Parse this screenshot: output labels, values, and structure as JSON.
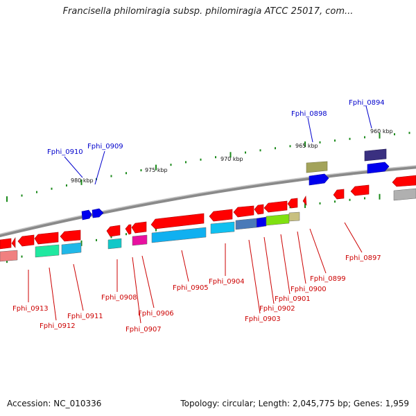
{
  "title": "Francisella philomiragia subsp. philomiragia ATCC 25017, com...",
  "footer": {
    "accession": "Accession: NC_010336",
    "summary": "Topology: circular; Length: 2,045,775 bp; Genes: 1,959"
  },
  "colors": {
    "backbone": "#8a8a8a",
    "tick": "#1a8a1a",
    "forward_label": "#0000cc",
    "reverse_label": "#cc0000"
  },
  "scale": [
    {
      "label": "980 kbp"
    },
    {
      "label": "975 kbp"
    },
    {
      "label": "970 kbp"
    },
    {
      "label": "965 kbp"
    },
    {
      "label": "960 kbp"
    }
  ],
  "forward_genes": [
    {
      "label": "Fphi_0910",
      "color": "#0000ee"
    },
    {
      "label": "Fphi_0909",
      "color": "#0000ee"
    },
    {
      "label": "Fphi_0898",
      "color": "#0000ee"
    },
    {
      "label": "Fphi_0894",
      "color": "#0000ee"
    }
  ],
  "reverse_genes": [
    {
      "label": "Fphi_0913",
      "color": "#ff0000"
    },
    {
      "label": "Fphi_0912",
      "color": "#ff0000"
    },
    {
      "label": "Fphi_0911",
      "color": "#ff0000"
    },
    {
      "label": "Fphi_0908",
      "color": "#ff0000"
    },
    {
      "label": "Fphi_0907",
      "color": "#ff0000"
    },
    {
      "label": "Fphi_0906",
      "color": "#ff0000"
    },
    {
      "label": "Fphi_0905",
      "color": "#ff0000"
    },
    {
      "label": "Fphi_0904",
      "color": "#ff0000"
    },
    {
      "label": "Fphi_0903",
      "color": "#ff0000"
    },
    {
      "label": "Fphi_0902",
      "color": "#ff0000"
    },
    {
      "label": "Fphi_0901",
      "color": "#ff0000"
    },
    {
      "label": "Fphi_0900",
      "color": "#ff0000"
    },
    {
      "label": "Fphi_0899",
      "color": "#ff0000"
    },
    {
      "label": "Fphi_0897",
      "color": "#ff0000"
    }
  ]
}
